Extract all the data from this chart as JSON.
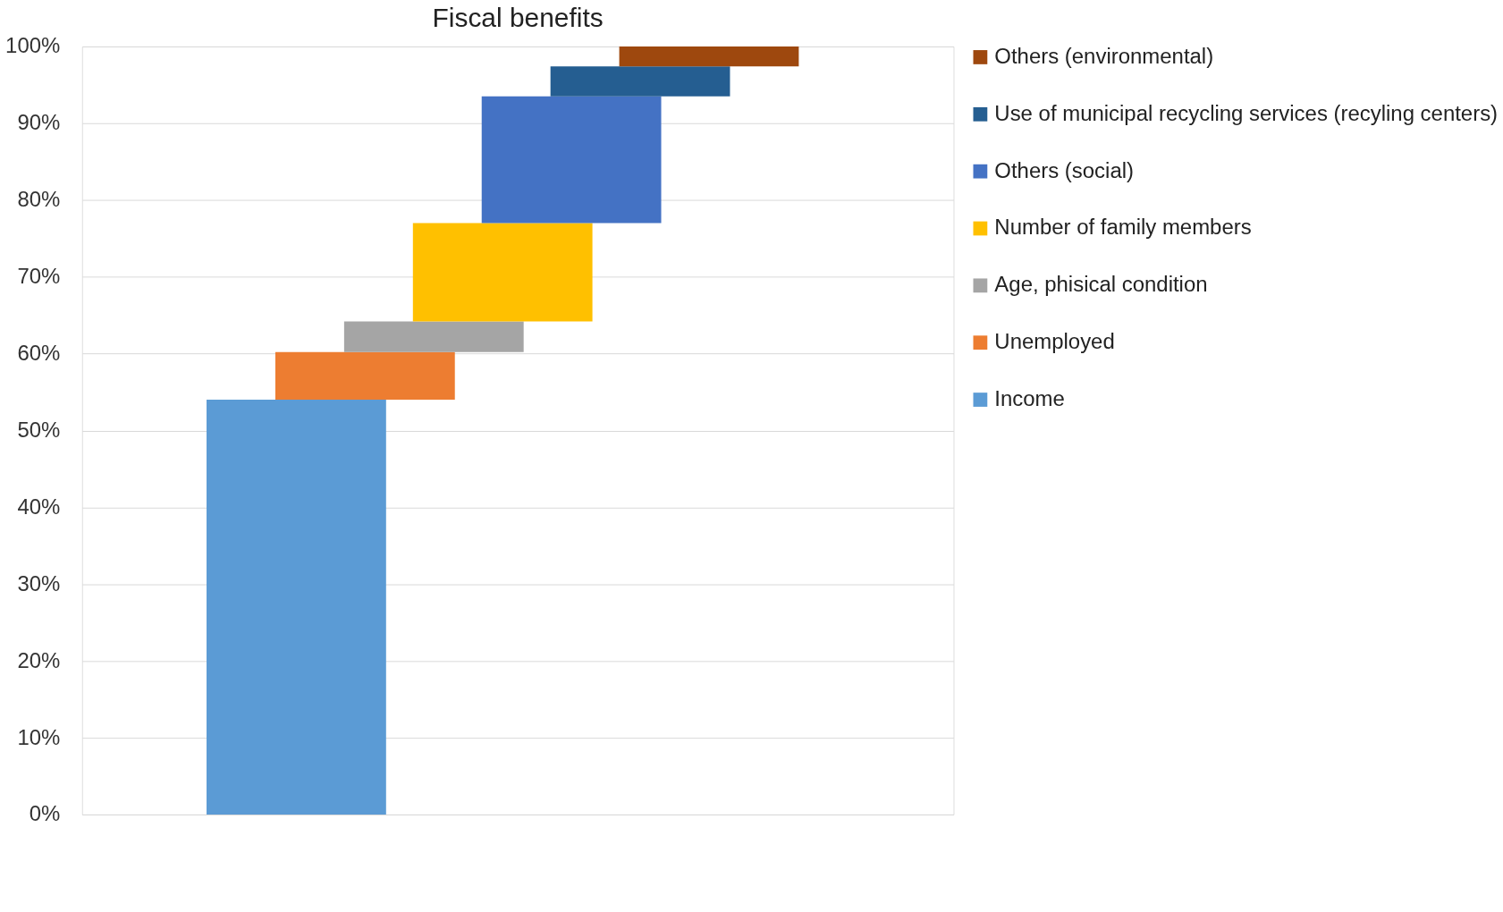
{
  "chart_data": {
    "type": "bar",
    "title": "Fiscal benefits",
    "categories": [
      null
    ],
    "series": [
      {
        "name": "Income",
        "color": "#5b9bd5",
        "values": [
          54
        ],
        "base": [
          0
        ]
      },
      {
        "name": "Unemployed",
        "color": "#ed7d31",
        "values": [
          6.2
        ],
        "base": [
          54
        ]
      },
      {
        "name": "Age, phisical condition",
        "color": "#a5a5a5",
        "values": [
          4
        ],
        "base": [
          60.2
        ]
      },
      {
        "name": "Number of family members",
        "color": "#ffc000",
        "values": [
          12.8
        ],
        "base": [
          64.2
        ]
      },
      {
        "name": "Others (social)",
        "color": "#4472c4",
        "values": [
          16.5
        ],
        "base": [
          77
        ]
      },
      {
        "name": "Use of municipal recycling services (recyling centers)",
        "color": "#255e91",
        "values": [
          3.9
        ],
        "base": [
          93.5
        ]
      },
      {
        "name": "Others (environmental)",
        "color": "#9e480e",
        "values": [
          2.6
        ],
        "base": [
          97.4
        ]
      }
    ],
    "ylim": [
      0,
      100
    ],
    "yticks": [
      {
        "value": 0,
        "label": "0%"
      },
      {
        "value": 10,
        "label": "10%"
      },
      {
        "value": 20,
        "label": "20%"
      },
      {
        "value": 30,
        "label": "30%"
      },
      {
        "value": 40,
        "label": "40%"
      },
      {
        "value": 50,
        "label": "50%"
      },
      {
        "value": 60,
        "label": "60%"
      },
      {
        "value": 70,
        "label": "70%"
      },
      {
        "value": 80,
        "label": "80%"
      },
      {
        "value": 90,
        "label": "90%"
      },
      {
        "value": 100,
        "label": "100%"
      }
    ],
    "grid": "y",
    "legend": "right",
    "tick_labels": "y"
  }
}
